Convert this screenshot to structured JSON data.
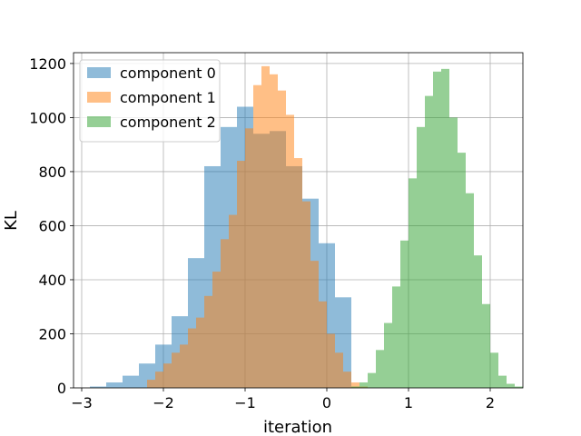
{
  "chart_data": {
    "type": "bar",
    "subtype": "overlapping-histogram",
    "title": "",
    "xlabel": "iteration",
    "ylabel": "KL",
    "xlim": [
      -3.1,
      2.4
    ],
    "ylim": [
      0,
      1240
    ],
    "xticks": [
      -3,
      -2,
      -1,
      0,
      1,
      2
    ],
    "yticks": [
      0,
      200,
      400,
      600,
      800,
      1000,
      1200
    ],
    "grid": true,
    "legend_position": "top-left",
    "bar_alpha": 0.5,
    "series": [
      {
        "name": "component 0",
        "color": "#1f77b4",
        "bin_start": -2.9,
        "bin_width": 0.2,
        "values": [
          5,
          20,
          45,
          90,
          160,
          265,
          480,
          820,
          965,
          1040,
          940,
          950,
          820,
          700,
          535,
          335,
          0,
          0,
          0,
          0
        ]
      },
      {
        "name": "component 1",
        "color": "#ff7f0e",
        "bin_start": -2.2,
        "bin_width": 0.1,
        "values": [
          30,
          60,
          90,
          130,
          160,
          220,
          260,
          340,
          430,
          550,
          640,
          840,
          960,
          1120,
          1190,
          1160,
          1100,
          1010,
          850,
          690,
          470,
          320,
          200,
          130,
          60,
          20,
          5
        ]
      },
      {
        "name": "component 2",
        "color": "#2ca02c",
        "bin_start": 0.3,
        "bin_width": 0.1,
        "values": [
          5,
          20,
          55,
          140,
          240,
          375,
          545,
          775,
          965,
          1080,
          1170,
          1180,
          1000,
          870,
          720,
          490,
          310,
          130,
          45,
          15,
          5
        ]
      }
    ]
  }
}
